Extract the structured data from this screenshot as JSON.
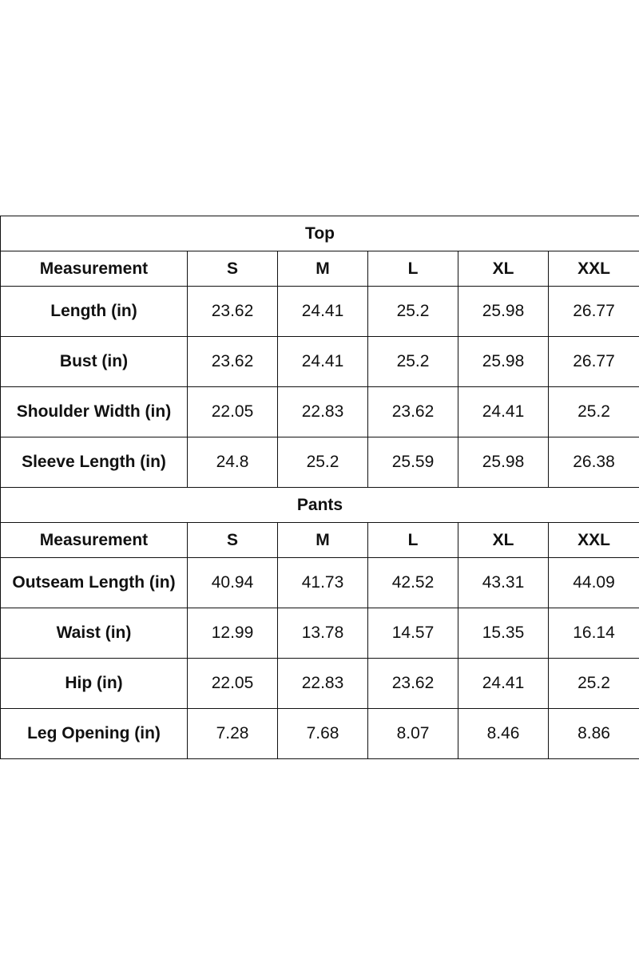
{
  "sections": [
    {
      "title": "Top",
      "header": [
        "Measurement",
        "S",
        "M",
        "L",
        "XL",
        "XXL"
      ],
      "rows": [
        [
          "Length (in)",
          "23.62",
          "24.41",
          "25.2",
          "25.98",
          "26.77"
        ],
        [
          "Bust (in)",
          "23.62",
          "24.41",
          "25.2",
          "25.98",
          "26.77"
        ],
        [
          "Shoulder Width (in)",
          "22.05",
          "22.83",
          "23.62",
          "24.41",
          "25.2"
        ],
        [
          "Sleeve Length (in)",
          "24.8",
          "25.2",
          "25.59",
          "25.98",
          "26.38"
        ]
      ]
    },
    {
      "title": "Pants",
      "header": [
        "Measurement",
        "S",
        "M",
        "L",
        "XL",
        "XXL"
      ],
      "rows": [
        [
          "Outseam Length (in)",
          "40.94",
          "41.73",
          "42.52",
          "43.31",
          "44.09"
        ],
        [
          "Waist (in)",
          "12.99",
          "13.78",
          "14.57",
          "15.35",
          "16.14"
        ],
        [
          "Hip (in)",
          "22.05",
          "22.83",
          "23.62",
          "24.41",
          "25.2"
        ],
        [
          "Leg Opening (in)",
          "7.28",
          "7.68",
          "8.07",
          "8.46",
          "8.86"
        ]
      ]
    }
  ]
}
